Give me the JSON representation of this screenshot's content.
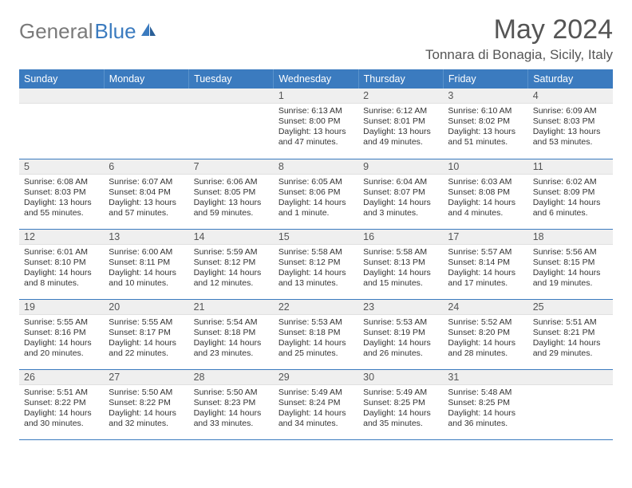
{
  "brand": {
    "name_a": "General",
    "name_b": "Blue"
  },
  "title": "May 2024",
  "location": "Tonnara di Bonagia, Sicily, Italy",
  "colors": {
    "header_bg": "#3b7bbf",
    "header_text": "#ffffff",
    "daynum_bg": "#efefef",
    "body_text": "#333333",
    "title_text": "#555555",
    "row_border": "#3b7bbf"
  },
  "day_headers": [
    "Sunday",
    "Monday",
    "Tuesday",
    "Wednesday",
    "Thursday",
    "Friday",
    "Saturday"
  ],
  "weeks": [
    [
      {
        "n": "",
        "sunrise": "",
        "sunset": "",
        "daylight": ""
      },
      {
        "n": "",
        "sunrise": "",
        "sunset": "",
        "daylight": ""
      },
      {
        "n": "",
        "sunrise": "",
        "sunset": "",
        "daylight": ""
      },
      {
        "n": "1",
        "sunrise": "Sunrise: 6:13 AM",
        "sunset": "Sunset: 8:00 PM",
        "daylight": "Daylight: 13 hours and 47 minutes."
      },
      {
        "n": "2",
        "sunrise": "Sunrise: 6:12 AM",
        "sunset": "Sunset: 8:01 PM",
        "daylight": "Daylight: 13 hours and 49 minutes."
      },
      {
        "n": "3",
        "sunrise": "Sunrise: 6:10 AM",
        "sunset": "Sunset: 8:02 PM",
        "daylight": "Daylight: 13 hours and 51 minutes."
      },
      {
        "n": "4",
        "sunrise": "Sunrise: 6:09 AM",
        "sunset": "Sunset: 8:03 PM",
        "daylight": "Daylight: 13 hours and 53 minutes."
      }
    ],
    [
      {
        "n": "5",
        "sunrise": "Sunrise: 6:08 AM",
        "sunset": "Sunset: 8:03 PM",
        "daylight": "Daylight: 13 hours and 55 minutes."
      },
      {
        "n": "6",
        "sunrise": "Sunrise: 6:07 AM",
        "sunset": "Sunset: 8:04 PM",
        "daylight": "Daylight: 13 hours and 57 minutes."
      },
      {
        "n": "7",
        "sunrise": "Sunrise: 6:06 AM",
        "sunset": "Sunset: 8:05 PM",
        "daylight": "Daylight: 13 hours and 59 minutes."
      },
      {
        "n": "8",
        "sunrise": "Sunrise: 6:05 AM",
        "sunset": "Sunset: 8:06 PM",
        "daylight": "Daylight: 14 hours and 1 minute."
      },
      {
        "n": "9",
        "sunrise": "Sunrise: 6:04 AM",
        "sunset": "Sunset: 8:07 PM",
        "daylight": "Daylight: 14 hours and 3 minutes."
      },
      {
        "n": "10",
        "sunrise": "Sunrise: 6:03 AM",
        "sunset": "Sunset: 8:08 PM",
        "daylight": "Daylight: 14 hours and 4 minutes."
      },
      {
        "n": "11",
        "sunrise": "Sunrise: 6:02 AM",
        "sunset": "Sunset: 8:09 PM",
        "daylight": "Daylight: 14 hours and 6 minutes."
      }
    ],
    [
      {
        "n": "12",
        "sunrise": "Sunrise: 6:01 AM",
        "sunset": "Sunset: 8:10 PM",
        "daylight": "Daylight: 14 hours and 8 minutes."
      },
      {
        "n": "13",
        "sunrise": "Sunrise: 6:00 AM",
        "sunset": "Sunset: 8:11 PM",
        "daylight": "Daylight: 14 hours and 10 minutes."
      },
      {
        "n": "14",
        "sunrise": "Sunrise: 5:59 AM",
        "sunset": "Sunset: 8:12 PM",
        "daylight": "Daylight: 14 hours and 12 minutes."
      },
      {
        "n": "15",
        "sunrise": "Sunrise: 5:58 AM",
        "sunset": "Sunset: 8:12 PM",
        "daylight": "Daylight: 14 hours and 13 minutes."
      },
      {
        "n": "16",
        "sunrise": "Sunrise: 5:58 AM",
        "sunset": "Sunset: 8:13 PM",
        "daylight": "Daylight: 14 hours and 15 minutes."
      },
      {
        "n": "17",
        "sunrise": "Sunrise: 5:57 AM",
        "sunset": "Sunset: 8:14 PM",
        "daylight": "Daylight: 14 hours and 17 minutes."
      },
      {
        "n": "18",
        "sunrise": "Sunrise: 5:56 AM",
        "sunset": "Sunset: 8:15 PM",
        "daylight": "Daylight: 14 hours and 19 minutes."
      }
    ],
    [
      {
        "n": "19",
        "sunrise": "Sunrise: 5:55 AM",
        "sunset": "Sunset: 8:16 PM",
        "daylight": "Daylight: 14 hours and 20 minutes."
      },
      {
        "n": "20",
        "sunrise": "Sunrise: 5:55 AM",
        "sunset": "Sunset: 8:17 PM",
        "daylight": "Daylight: 14 hours and 22 minutes."
      },
      {
        "n": "21",
        "sunrise": "Sunrise: 5:54 AM",
        "sunset": "Sunset: 8:18 PM",
        "daylight": "Daylight: 14 hours and 23 minutes."
      },
      {
        "n": "22",
        "sunrise": "Sunrise: 5:53 AM",
        "sunset": "Sunset: 8:18 PM",
        "daylight": "Daylight: 14 hours and 25 minutes."
      },
      {
        "n": "23",
        "sunrise": "Sunrise: 5:53 AM",
        "sunset": "Sunset: 8:19 PM",
        "daylight": "Daylight: 14 hours and 26 minutes."
      },
      {
        "n": "24",
        "sunrise": "Sunrise: 5:52 AM",
        "sunset": "Sunset: 8:20 PM",
        "daylight": "Daylight: 14 hours and 28 minutes."
      },
      {
        "n": "25",
        "sunrise": "Sunrise: 5:51 AM",
        "sunset": "Sunset: 8:21 PM",
        "daylight": "Daylight: 14 hours and 29 minutes."
      }
    ],
    [
      {
        "n": "26",
        "sunrise": "Sunrise: 5:51 AM",
        "sunset": "Sunset: 8:22 PM",
        "daylight": "Daylight: 14 hours and 30 minutes."
      },
      {
        "n": "27",
        "sunrise": "Sunrise: 5:50 AM",
        "sunset": "Sunset: 8:22 PM",
        "daylight": "Daylight: 14 hours and 32 minutes."
      },
      {
        "n": "28",
        "sunrise": "Sunrise: 5:50 AM",
        "sunset": "Sunset: 8:23 PM",
        "daylight": "Daylight: 14 hours and 33 minutes."
      },
      {
        "n": "29",
        "sunrise": "Sunrise: 5:49 AM",
        "sunset": "Sunset: 8:24 PM",
        "daylight": "Daylight: 14 hours and 34 minutes."
      },
      {
        "n": "30",
        "sunrise": "Sunrise: 5:49 AM",
        "sunset": "Sunset: 8:25 PM",
        "daylight": "Daylight: 14 hours and 35 minutes."
      },
      {
        "n": "31",
        "sunrise": "Sunrise: 5:48 AM",
        "sunset": "Sunset: 8:25 PM",
        "daylight": "Daylight: 14 hours and 36 minutes."
      },
      {
        "n": "",
        "sunrise": "",
        "sunset": "",
        "daylight": ""
      }
    ]
  ]
}
